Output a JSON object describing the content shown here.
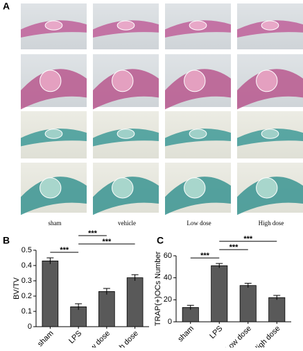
{
  "panel_labels": [
    "A",
    "B",
    "C"
  ],
  "image_captions": [
    "sham",
    "vehicle",
    "Low dose",
    "High dose"
  ],
  "chart_data": [
    {
      "type": "bar",
      "ylabel": "BV/TV",
      "categories": [
        "sham",
        "LPS",
        "Low dose",
        "High dose"
      ],
      "values": [
        0.43,
        0.13,
        0.23,
        0.32
      ],
      "errors": [
        0.02,
        0.02,
        0.02,
        0.02
      ],
      "color": "#595959",
      "ylim": [
        0,
        0.5
      ],
      "yticks": [
        0,
        0.1,
        0.2,
        0.3,
        0.4,
        0.5
      ],
      "significance": [
        {
          "label": "***",
          "between": [
            0,
            1
          ]
        },
        {
          "label": "***",
          "between": [
            1,
            3
          ]
        },
        {
          "label": "***",
          "between": [
            1,
            2
          ]
        }
      ]
    },
    {
      "type": "bar",
      "ylabel": "TRAP(+)OCs Number",
      "categories": [
        "sham",
        "LPS",
        "Low dose",
        "High dose"
      ],
      "values": [
        13,
        51,
        33,
        22
      ],
      "errors": [
        2,
        2,
        2,
        2
      ],
      "color": "#595959",
      "ylim": [
        0,
        60
      ],
      "yticks": [
        0,
        20,
        40,
        60
      ],
      "significance": [
        {
          "label": "***",
          "between": [
            0,
            1
          ]
        },
        {
          "label": "***",
          "between": [
            1,
            2
          ]
        },
        {
          "label": "***",
          "between": [
            1,
            3
          ]
        }
      ]
    }
  ]
}
